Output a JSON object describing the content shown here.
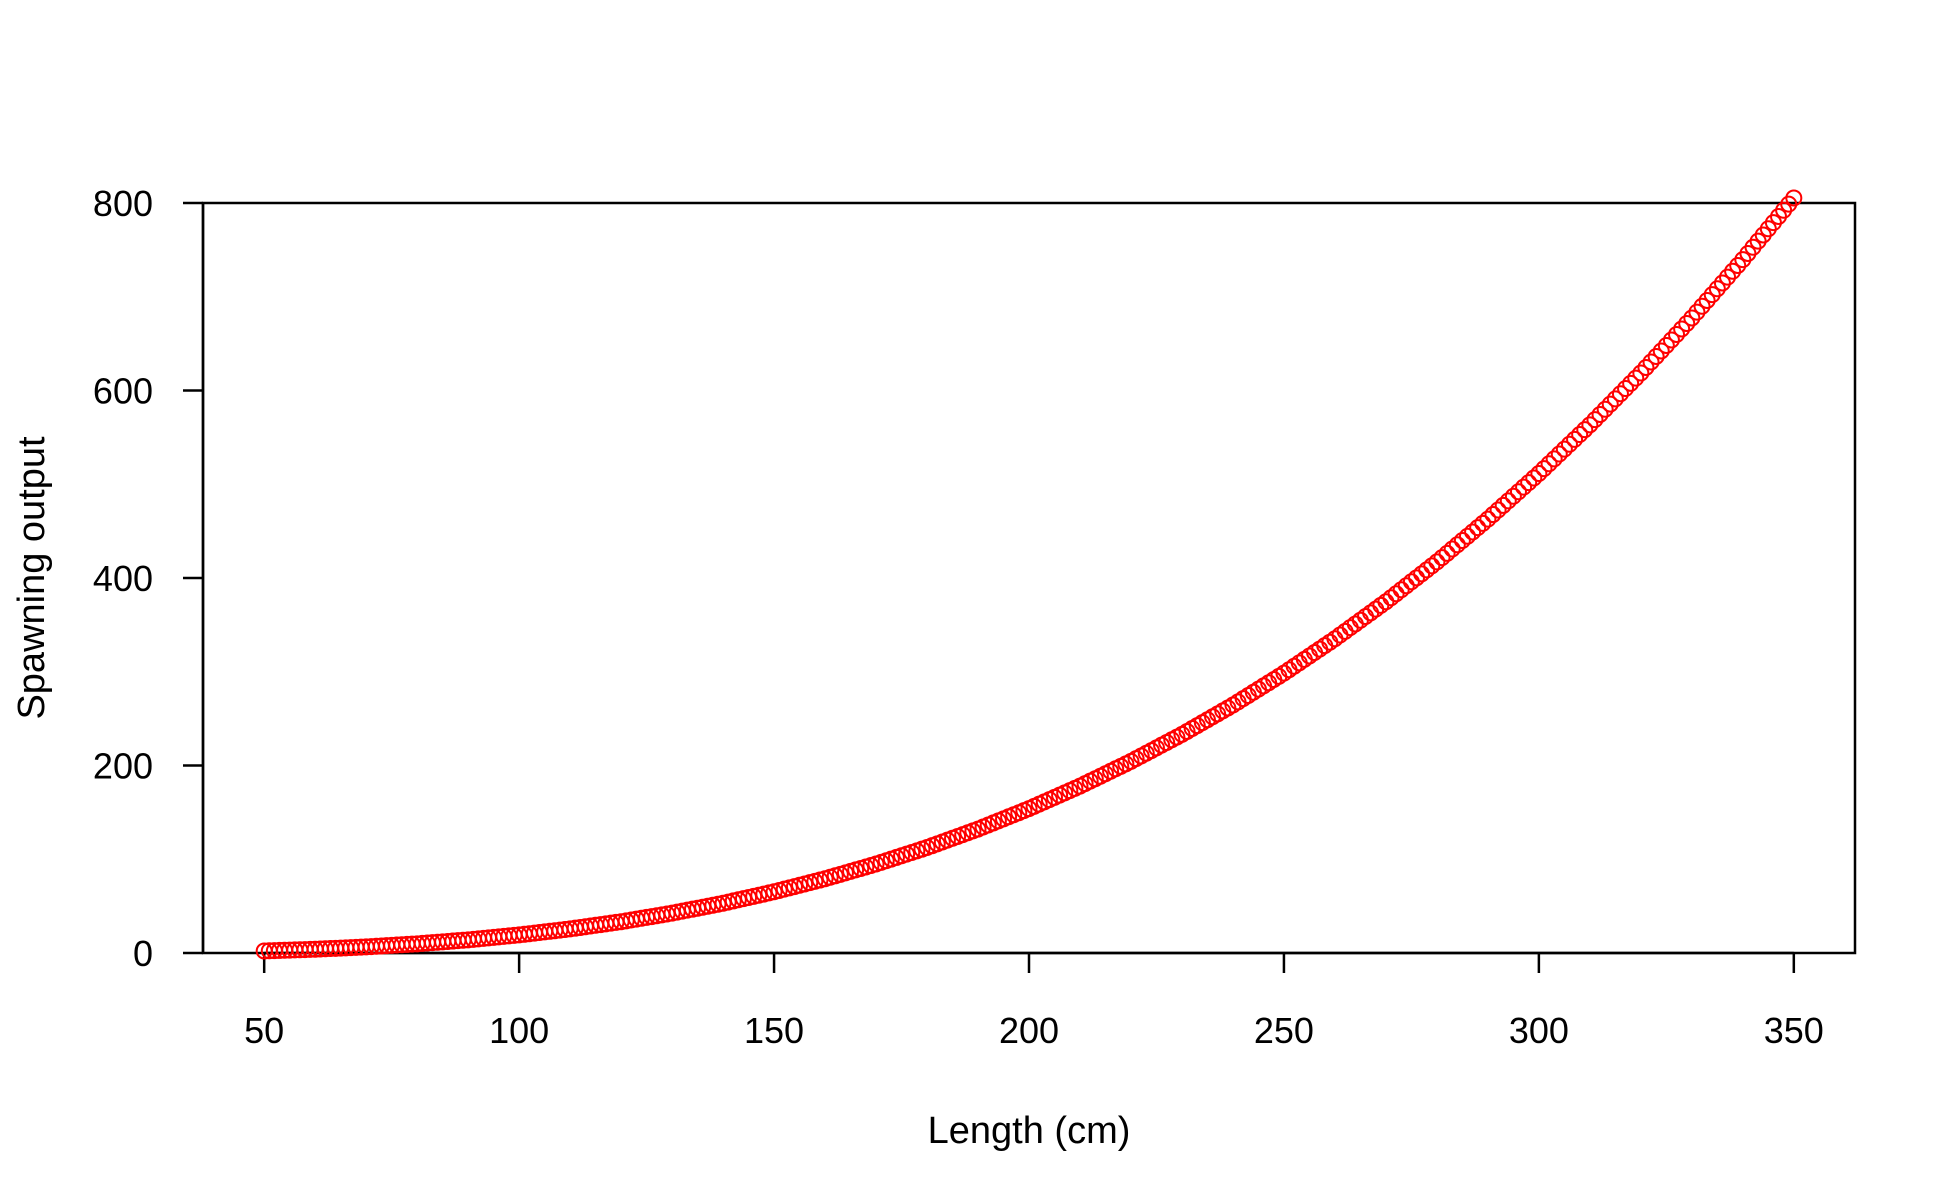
{
  "chart_data": {
    "type": "scatter",
    "title": "",
    "xlabel": "Length (cm)",
    "ylabel": "Spawning output",
    "xlim": [
      38,
      362
    ],
    "ylim": [
      0,
      800
    ],
    "x_ticks": [
      50,
      100,
      150,
      200,
      250,
      300,
      350
    ],
    "y_ticks": [
      0,
      200,
      400,
      600,
      800
    ],
    "grid": false,
    "legend": "none",
    "marker": "open-circle",
    "color": "#ff0000",
    "series": [
      {
        "x": [
          50,
          60,
          70,
          80,
          90,
          100,
          110,
          120,
          130,
          140,
          150,
          160,
          170,
          180,
          190,
          200,
          210,
          220,
          230,
          240,
          250,
          260,
          270,
          280,
          290,
          300,
          310,
          320,
          330,
          340,
          350
        ],
        "y": [
          2.2,
          4,
          6.5,
          9.8,
          14,
          19.3,
          25.7,
          33.4,
          42.5,
          53.1,
          65.3,
          79.2,
          94.9,
          112.5,
          132.2,
          154,
          178,
          204.4,
          233.2,
          264.5,
          298.5,
          335.2,
          374.7,
          417.2,
          462.8,
          511.5,
          563.4,
          618.7,
          677.4,
          739.6,
          805.4
        ]
      }
    ]
  }
}
